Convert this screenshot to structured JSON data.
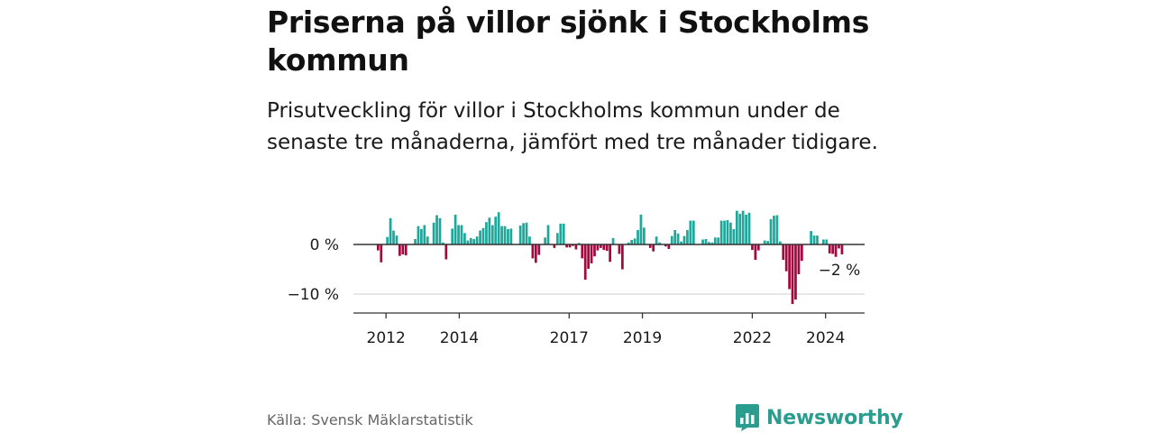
{
  "title": "Priserna på villor sjönk i Stockholms kommun",
  "subtitle": "Prisutveckling för villor i Stockholms kommun under de senaste tre månaderna, jämfört med tre månader tidigare.",
  "source": "Källa: Svensk Mäklarstatistik",
  "brand": "Newsworthy",
  "colors": {
    "positive": "#1fa79b",
    "negative": "#a3093f",
    "brand": "#2a9d8f",
    "axis": "#333333",
    "grid": "#dddddd"
  },
  "chart_data": {
    "type": "bar",
    "title": "Priserna på villor sjönk i Stockholms kommun",
    "ylabel": "",
    "xlabel": "",
    "ylim": [
      -14,
      6
    ],
    "y_ticks": [
      0,
      -10
    ],
    "y_tick_labels": [
      "0 %",
      "−10 %"
    ],
    "x_start": 2011.75,
    "x_end": 2024.5,
    "x_ticks": [
      2012,
      2014,
      2017,
      2019,
      2022,
      2024
    ],
    "x_tick_labels": [
      "2012",
      "2014",
      "2017",
      "2019",
      "2022",
      "2024"
    ],
    "annotation": {
      "label": "−2 %",
      "value": -2
    },
    "values": [
      -1.2,
      -3.6,
      0,
      1.5,
      5.3,
      2.8,
      1.8,
      -2.3,
      -2,
      -2.2,
      0,
      0,
      1.1,
      3.7,
      3.1,
      3.9,
      1.6,
      0,
      4.4,
      5.9,
      5.3,
      0.4,
      -3,
      0,
      3.2,
      6,
      3.9,
      3.9,
      2.3,
      0.8,
      1.3,
      1.1,
      1.6,
      2.8,
      3.3,
      4.5,
      5.4,
      3.9,
      5.6,
      6.5,
      3.7,
      3.7,
      3.1,
      3.2,
      0,
      0,
      3.8,
      4.3,
      4.4,
      1.6,
      -2.8,
      -3.7,
      -2.1,
      0,
      1.4,
      3.9,
      0,
      -0.7,
      2.3,
      4.2,
      4.2,
      -0.6,
      -0.6,
      -0.3,
      -1,
      0.3,
      -2.8,
      -7.1,
      -4.9,
      -3.8,
      -2.4,
      -1.2,
      -0.7,
      -1.1,
      -1.3,
      -3.5,
      1.3,
      0,
      -1.9,
      -5,
      0,
      0.4,
      0.9,
      1.2,
      2.9,
      6,
      3.4,
      0,
      -0.7,
      -1.4,
      1.6,
      0.4,
      0,
      -0.4,
      -0.9,
      1.7,
      2.9,
      2.2,
      0.6,
      1.7,
      2.9,
      4.8,
      4.8,
      0,
      0,
      1,
      1.1,
      0.5,
      0.4,
      1.4,
      1.4,
      4.8,
      4.8,
      4.9,
      4.4,
      3.1,
      6.8,
      6.2,
      6.8,
      6,
      6.4,
      -1.1,
      -3.1,
      -1.2,
      0,
      0.8,
      0.7,
      5.1,
      5.8,
      5.9,
      0.6,
      -3.1,
      -5.4,
      -9,
      -12,
      -11.1,
      -6,
      -3.3,
      0,
      0,
      2.7,
      1.8,
      1.8,
      0,
      1,
      1,
      -1.8,
      -1.9,
      -2.5,
      -0.8,
      -2
    ]
  }
}
